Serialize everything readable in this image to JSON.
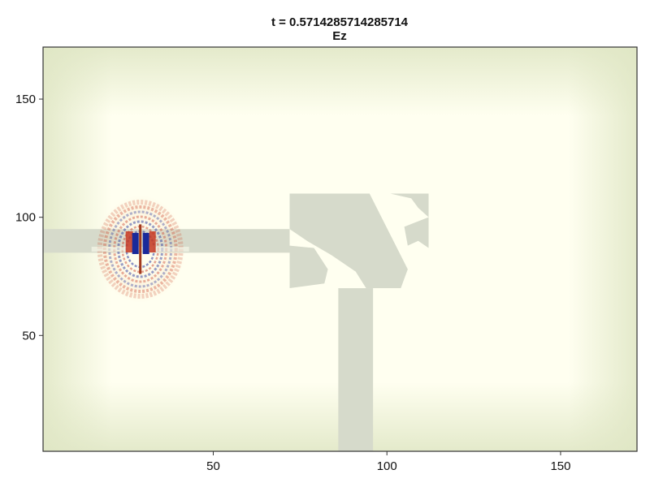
{
  "chart_data": {
    "type": "heatmap",
    "title": "t = 0.5714285714285714",
    "subtitle": "Ez",
    "xlabel": "",
    "ylabel": "",
    "xlim": [
      1,
      172
    ],
    "ylim": [
      1,
      172
    ],
    "xticks": [
      50,
      100,
      150
    ],
    "yticks": [
      50,
      100,
      150
    ],
    "grid": false,
    "field": {
      "background_color": "#fffff0",
      "boundary_absorber_color": "#dfe6c4",
      "positive_color": "#c83a22",
      "negative_color": "#1a2a9a",
      "source": {
        "x": 29,
        "y_min": 76,
        "y_max": 97
      }
    },
    "geometry": {
      "color": "#d6dacb",
      "waveguides": [
        {
          "x_min": 1,
          "x_max": 72,
          "y_min": 85,
          "y_max": 95
        },
        {
          "x_min": 86,
          "x_max": 96,
          "y_min": 1,
          "y_max": 70
        }
      ],
      "device_region": {
        "x_min": 72,
        "x_max": 112,
        "y_min": 70,
        "y_max": 110
      }
    }
  }
}
